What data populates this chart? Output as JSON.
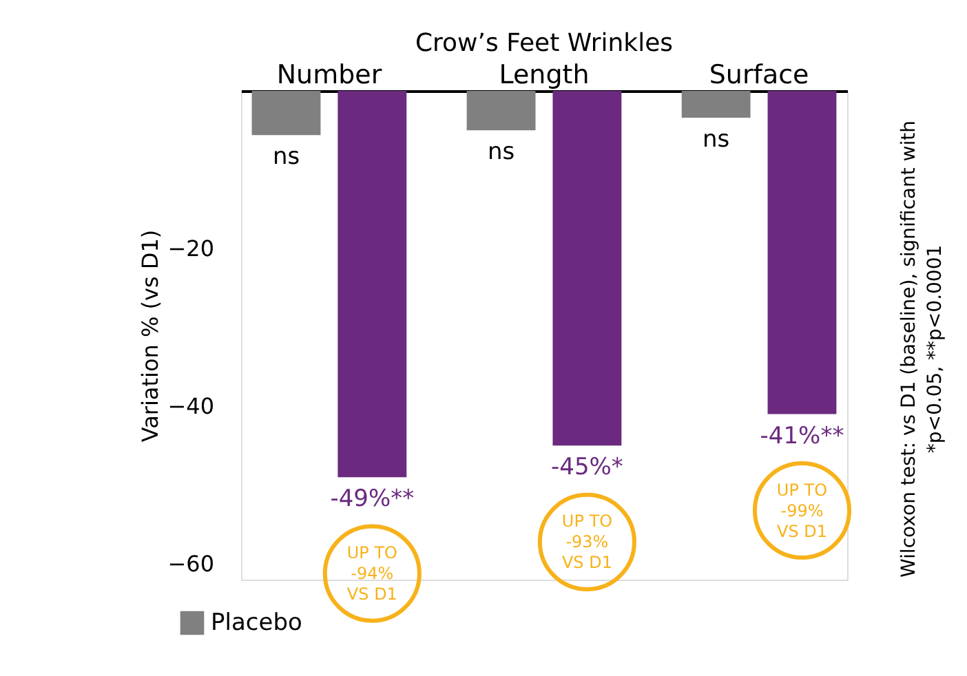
{
  "chart_data": {
    "type": "bar",
    "title": "Crow’s Feet Wrinkles",
    "ylabel": "Variation % (vs D1)",
    "categories": [
      "Number",
      "Length",
      "Surface"
    ],
    "series": [
      {
        "name": "Placebo",
        "color": "#808080",
        "values": [
          -5.6,
          -5,
          -3.4
        ],
        "value_labels": [
          "ns",
          "ns",
          "ns"
        ]
      },
      {
        "color": "#6b2a7f",
        "values": [
          -49,
          -45,
          -41
        ],
        "value_labels": [
          "-49%**",
          "-45%*",
          "-41%**"
        ]
      }
    ],
    "ylim": [
      -62,
      0
    ],
    "yticks": [
      -20,
      -40,
      -60
    ],
    "grid": false,
    "legend": "bottom left",
    "annotations": [
      "UP TO\n-94%\nVS D1",
      "UP TO\n-93%\nVS D1",
      "UP TO\n-99%\nVS D1",
      "Wilcoxon test: vs D1 (baseline), significant with\n*p<0.05, **p<0.0001"
    ]
  }
}
